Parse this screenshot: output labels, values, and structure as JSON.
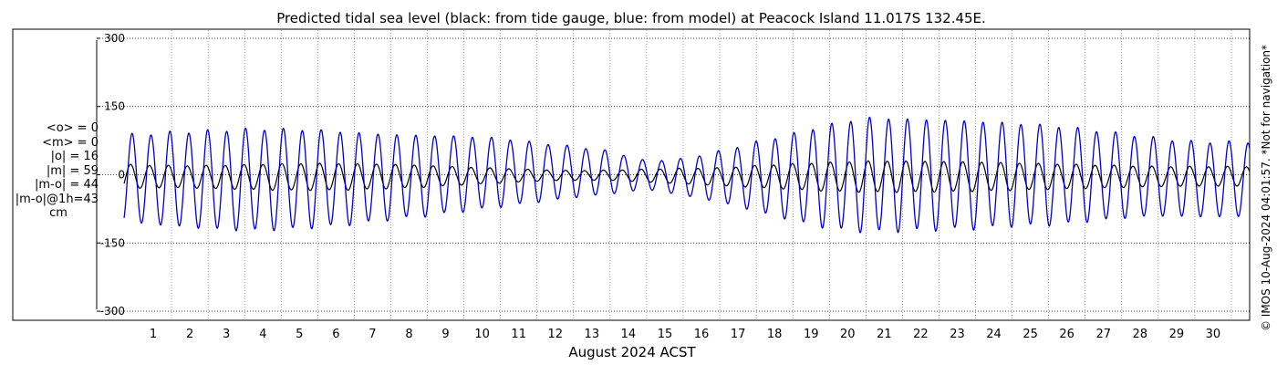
{
  "colors": {
    "gauge": "#000000",
    "model": "#0000cc",
    "grid": "#000000",
    "background": "#ffffff"
  },
  "stats": {
    "mean_obs": "<o> = 0",
    "mean_model": "<m> = 0",
    "abs_obs": "|o| = 16",
    "abs_model": "|m| = 59",
    "abs_diff": "|m-o| = 44",
    "abs_diff_1h": "|m-o|@1h=43",
    "unit": "cm"
  },
  "chart_data": {
    "type": "line",
    "title": "Predicted tidal sea level (black: from tide gauge, blue: from model) at Peacock Island 11.017S 132.45E.",
    "xlabel": "August 2024 ACST",
    "ylabel": "",
    "side_label": "© IMOS 10-Aug-2024 04:01:57. *Not for navigation*",
    "xlim": [
      0.2,
      31.0
    ],
    "ylim": [
      -320,
      320
    ],
    "y_ticks": [
      300,
      150,
      0,
      -150,
      -300
    ],
    "x_ticks": [
      1,
      2,
      3,
      4,
      5,
      6,
      7,
      8,
      9,
      10,
      11,
      12,
      13,
      14,
      15,
      16,
      17,
      18,
      19,
      20,
      21,
      22,
      23,
      24,
      25,
      26,
      27,
      28,
      29,
      30
    ],
    "grid": true,
    "series": [
      {
        "name": "tide gauge",
        "color": "#000000",
        "note": "semidiurnal tide, max/min per tidal cycle (cm)",
        "highs": [
          22,
          20,
          20,
          22,
          24,
          25,
          24,
          23,
          20,
          17,
          14,
          11,
          9,
          10,
          12,
          14,
          15,
          20,
          24,
          27,
          30,
          30,
          29,
          28,
          26,
          24,
          22,
          20,
          18,
          18
        ],
        "lows": [
          -30,
          -28,
          -30,
          -32,
          -34,
          -34,
          -33,
          -30,
          -27,
          -22,
          -18,
          -14,
          -12,
          -12,
          -16,
          -20,
          -24,
          -28,
          -32,
          -36,
          -38,
          -38,
          -37,
          -36,
          -34,
          -32,
          -30,
          -28,
          -26,
          -25
        ]
      },
      {
        "name": "model",
        "color": "#0000cc",
        "note": "semidiurnal tide, max/min per tidal cycle (cm)",
        "highs": [
          88,
          93,
          96,
          100,
          100,
          98,
          92,
          88,
          86,
          84,
          80,
          70,
          62,
          52,
          30,
          35,
          52,
          72,
          90,
          110,
          125,
          122,
          120,
          117,
          113,
          108,
          100,
          90,
          80,
          72
        ],
        "lows": [
          -105,
          -112,
          -118,
          -122,
          -120,
          -115,
          -108,
          -98,
          -90,
          -80,
          -70,
          -60,
          -50,
          -42,
          -32,
          -45,
          -60,
          -80,
          -100,
          -118,
          -125,
          -123,
          -120,
          -118,
          -112,
          -110,
          -103,
          -95,
          -90,
          -92
        ]
      }
    ]
  }
}
